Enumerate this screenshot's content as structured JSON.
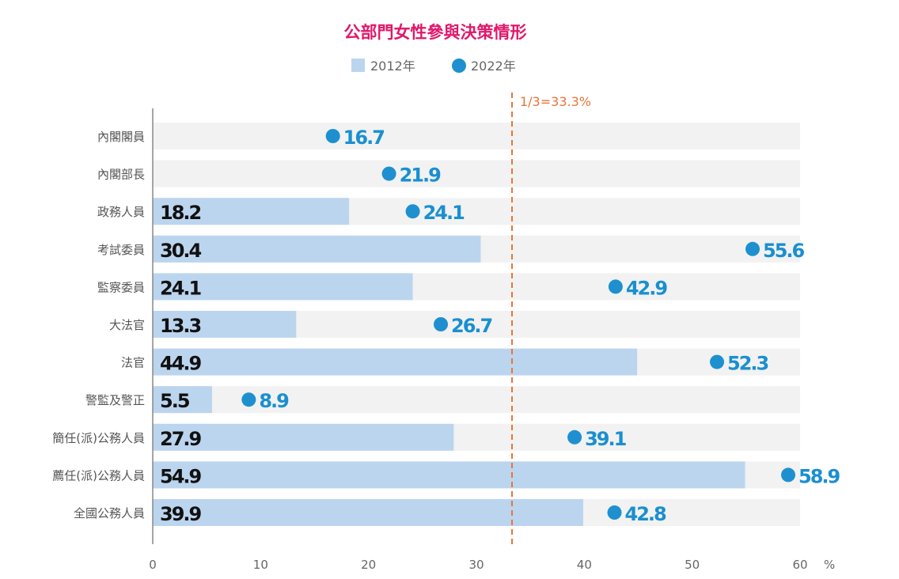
{
  "chart_data": {
    "type": "bar",
    "title": "公部門女性參與決策情形",
    "categories": [
      "內閣閣員",
      "內閣部長",
      "政務人員",
      "考試委員",
      "監察委員",
      "大法官",
      "法官",
      "警監及警正",
      "簡任(派)公務人員",
      "薦任(派)公務人員",
      "全國公務人員"
    ],
    "series": [
      {
        "name": "2012年",
        "marker": "bar",
        "values": [
          null,
          null,
          18.2,
          30.4,
          24.1,
          13.3,
          44.9,
          5.5,
          27.9,
          54.9,
          39.9
        ]
      },
      {
        "name": "2022年",
        "marker": "dot",
        "values": [
          16.7,
          21.9,
          24.1,
          55.6,
          42.9,
          26.7,
          52.3,
          8.9,
          39.1,
          58.9,
          42.8
        ]
      }
    ],
    "xlim": [
      0,
      60
    ],
    "xticks": [
      0,
      10,
      20,
      30,
      40,
      50,
      60
    ],
    "xunit": "%",
    "reference_line": {
      "value": 33.3,
      "label": "1/3=33.3%"
    },
    "legend_placement": "top-center",
    "colors": {
      "title": "#e0186c",
      "bar_2012": "#bcd5ef",
      "dot_2022": "#1e90d0",
      "band": "#f1f2f1",
      "reference": "#e8743b"
    }
  }
}
